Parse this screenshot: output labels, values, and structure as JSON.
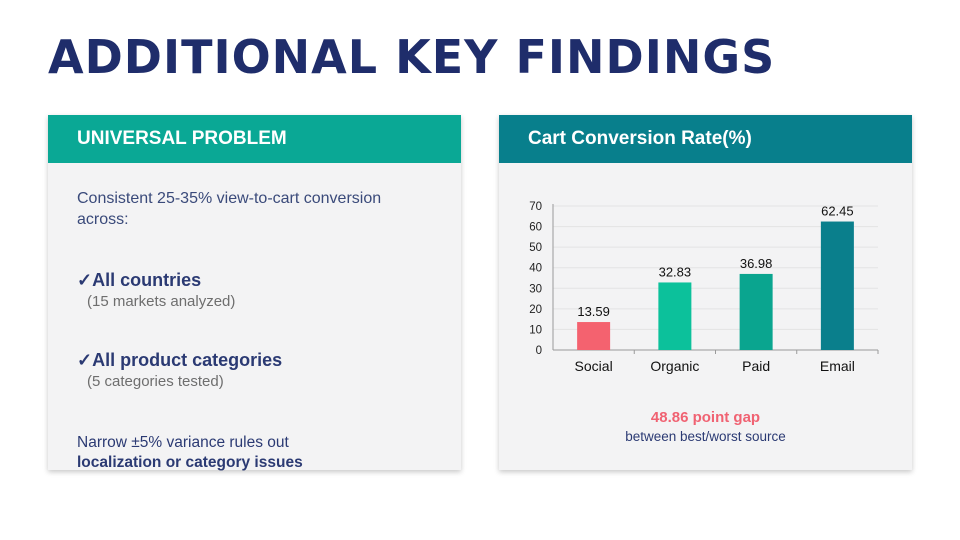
{
  "slide": {
    "title": "ADDITIONAL KEY FINDINGS"
  },
  "left_card": {
    "header": "UNIVERSAL PROBLEM",
    "intro": "Consistent 25-35% view-to-cart conversion across:",
    "checks": [
      {
        "mark": "✓",
        "title": "All countries",
        "sub": "(15 markets analyzed)"
      },
      {
        "mark": "✓",
        "title": "All product categories",
        "sub": "(5 categories tested)"
      }
    ],
    "note_line1": "Narrow ±5% variance rules out",
    "note_line2": "localization or category issues"
  },
  "right_card": {
    "header": "Cart Conversion Rate(%)",
    "gap_label": "48.86 point gap",
    "gap_sub": "between best/worst source"
  },
  "chart_data": {
    "type": "bar",
    "title": "Cart Conversion Rate(%)",
    "categories": [
      "Social",
      "Organic",
      "Paid",
      "Email"
    ],
    "values": [
      13.59,
      32.83,
      36.98,
      62.45
    ],
    "value_labels": [
      "13.59",
      "32.83",
      "36.98",
      "62.45"
    ],
    "colors": [
      "#f4626f",
      "#0cc19b",
      "#0aa58f",
      "#0a7f8c"
    ],
    "ylim": [
      0,
      70
    ],
    "yticks": [
      0,
      10,
      20,
      30,
      40,
      50,
      60,
      70
    ],
    "grid": true,
    "legend": "none"
  }
}
